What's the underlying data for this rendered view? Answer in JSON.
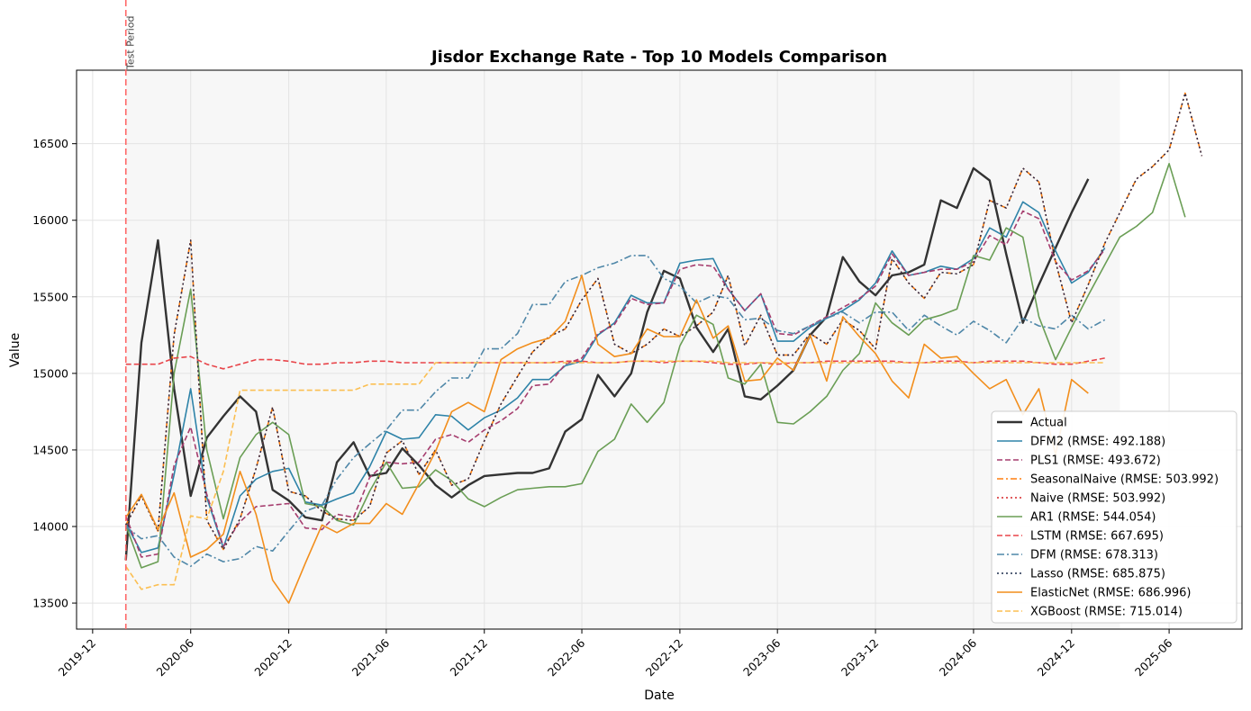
{
  "chart_data": {
    "type": "line",
    "title": "Jisdor Exchange Rate - Top 10 Models Comparison",
    "xlabel": "Date",
    "ylabel": "Value",
    "x_tick_labels": [
      "2019-12",
      "2020-06",
      "2020-12",
      "2021-06",
      "2021-12",
      "2022-06",
      "2022-12",
      "2023-06",
      "2023-12",
      "2024-06",
      "2024-12",
      "2025-06"
    ],
    "y_ticks": [
      13500,
      14000,
      14500,
      15000,
      15500,
      16000,
      16500
    ],
    "ylim": [
      13330,
      16980
    ],
    "xlim": [
      "2019-11-01",
      "2025-10-15"
    ],
    "grid": true,
    "legend_position": "lower-right",
    "test_period": {
      "label": "Test Period",
      "start": "2020-02",
      "shaded_until": "2025-03",
      "color": "#ff6666"
    },
    "months": [
      "2020-02",
      "2020-03",
      "2020-04",
      "2020-05",
      "2020-06",
      "2020-07",
      "2020-08",
      "2020-09",
      "2020-10",
      "2020-11",
      "2020-12",
      "2021-01",
      "2021-02",
      "2021-03",
      "2021-04",
      "2021-05",
      "2021-06",
      "2021-07",
      "2021-08",
      "2021-09",
      "2021-10",
      "2021-11",
      "2021-12",
      "2022-01",
      "2022-02",
      "2022-03",
      "2022-04",
      "2022-05",
      "2022-06",
      "2022-07",
      "2022-08",
      "2022-09",
      "2022-10",
      "2022-11",
      "2022-12",
      "2023-01",
      "2023-02",
      "2023-03",
      "2023-04",
      "2023-05",
      "2023-06",
      "2023-07",
      "2023-08",
      "2023-09",
      "2023-10",
      "2023-11",
      "2023-12",
      "2024-01",
      "2024-02",
      "2024-03",
      "2024-04",
      "2024-05",
      "2024-06",
      "2024-07",
      "2024-08",
      "2024-09",
      "2024-10",
      "2024-11",
      "2024-12",
      "2025-01",
      "2025-02",
      "2025-03",
      "2025-04",
      "2025-05",
      "2025-06",
      "2025-07",
      "2025-08",
      "2025-09"
    ],
    "series": [
      {
        "name": "Actual (RMSE)",
        "legend": "Actual",
        "color": "#333333",
        "width": 2.4,
        "dash": "",
        "start": 0,
        "values": [
          13780,
          15200,
          15870,
          14900,
          14200,
          14580,
          14720,
          14850,
          14750,
          14240,
          14170,
          14060,
          14040,
          14420,
          14550,
          14330,
          14350,
          14510,
          14400,
          14270,
          14190,
          14270,
          14330,
          14340,
          14350,
          14350,
          14380,
          14620,
          14700,
          14990,
          14850,
          15000,
          15400,
          15670,
          15620,
          15300,
          15140,
          15290,
          14850,
          14830,
          14920,
          15020,
          15250,
          15370,
          15760,
          15600,
          15510,
          15640,
          15660,
          15710,
          16130,
          16080,
          16340,
          16260,
          15780,
          15330,
          15580,
          15820,
          16050,
          16270
        ]
      },
      {
        "legend": "DFM2 (RMSE: 492.188)",
        "color": "#2e83a8",
        "width": 1.6,
        "dash": "",
        "start": 0,
        "values": [
          14020,
          13830,
          13860,
          14340,
          14900,
          14190,
          13860,
          14200,
          14310,
          14360,
          14380,
          14160,
          14140,
          14180,
          14220,
          14390,
          14620,
          14570,
          14580,
          14730,
          14720,
          14630,
          14710,
          14760,
          14840,
          14960,
          14960,
          15050,
          15080,
          15250,
          15330,
          15510,
          15460,
          15460,
          15720,
          15740,
          15750,
          15550,
          15410,
          15520,
          15210,
          15210,
          15300,
          15360,
          15410,
          15480,
          15590,
          15800,
          15640,
          15660,
          15700,
          15680,
          15750,
          15950,
          15890,
          16120,
          16050,
          15800,
          15590,
          15660,
          15820
        ]
      },
      {
        "legend": "PLS1 (RMSE: 493.672)",
        "color": "#a63d6e",
        "width": 1.6,
        "dash": "6,3",
        "start": 0,
        "values": [
          14070,
          13800,
          13820,
          14400,
          14650,
          14210,
          13870,
          14030,
          14130,
          14140,
          14150,
          13990,
          13980,
          14080,
          14060,
          14320,
          14420,
          14410,
          14420,
          14570,
          14600,
          14550,
          14630,
          14690,
          14770,
          14920,
          14930,
          15060,
          15100,
          15260,
          15320,
          15490,
          15450,
          15460,
          15680,
          15710,
          15700,
          15550,
          15410,
          15520,
          15260,
          15250,
          15310,
          15370,
          15430,
          15490,
          15570,
          15780,
          15640,
          15660,
          15680,
          15680,
          15730,
          15900,
          15840,
          16060,
          16010,
          15730,
          15610,
          15670,
          15810
        ]
      },
      {
        "legend": "SeasonalNaive (RMSE: 503.992)",
        "color": "#ff7f0e",
        "width": 1.6,
        "dash": "7,3,2,3",
        "start": 0,
        "values": [
          14010,
          14200,
          13970,
          15250,
          15870,
          14040,
          13850,
          14050,
          14380,
          14780,
          14230,
          14200,
          14100,
          14050,
          14040,
          14130,
          14480,
          14560,
          14340,
          14500,
          14270,
          14310,
          14560,
          14800,
          14980,
          15140,
          15240,
          15290,
          15480,
          15620,
          15190,
          15130,
          15190,
          15290,
          15240,
          15310,
          15400,
          15640,
          15180,
          15380,
          15120,
          15120,
          15260,
          15190,
          15350,
          15280,
          15160,
          15750,
          15590,
          15490,
          15660,
          15650,
          15710,
          16130,
          16080,
          16340,
          16250,
          15730,
          15330,
          15580,
          15850,
          16050,
          16270,
          16350,
          16460,
          16830,
          16420
        ]
      },
      {
        "legend": "Naive (RMSE: 503.992)",
        "color": "#d62728",
        "width": 1.4,
        "dash": "2,3",
        "start": 0,
        "values": [
          14010,
          14200,
          13970,
          15250,
          15870,
          14040,
          13850,
          14050,
          14380,
          14780,
          14230,
          14200,
          14100,
          14050,
          14040,
          14130,
          14480,
          14560,
          14340,
          14500,
          14270,
          14310,
          14560,
          14800,
          14980,
          15140,
          15240,
          15290,
          15480,
          15620,
          15190,
          15130,
          15190,
          15290,
          15240,
          15310,
          15400,
          15640,
          15180,
          15380,
          15120,
          15120,
          15260,
          15190,
          15350,
          15280,
          15160,
          15750,
          15590,
          15490,
          15660,
          15650,
          15710,
          16130,
          16080,
          16340,
          16250,
          15730,
          15330,
          15580,
          15850,
          16050,
          16270,
          16350,
          16460,
          16830,
          16420
        ]
      },
      {
        "legend": "AR1 (RMSE: 544.054)",
        "color": "#6a9e55",
        "width": 1.6,
        "dash": "",
        "start": 0,
        "values": [
          14010,
          13730,
          13770,
          15000,
          15550,
          14500,
          14050,
          14450,
          14600,
          14680,
          14600,
          14150,
          14130,
          14040,
          14010,
          14230,
          14420,
          14250,
          14260,
          14370,
          14300,
          14180,
          14130,
          14190,
          14240,
          14250,
          14260,
          14260,
          14280,
          14490,
          14570,
          14800,
          14680,
          14810,
          15180,
          15380,
          15320,
          14970,
          14930,
          15060,
          14680,
          14670,
          14750,
          14850,
          15020,
          15130,
          15460,
          15330,
          15250,
          15350,
          15380,
          15420,
          15770,
          15740,
          15950,
          15890,
          15370,
          15090,
          15300,
          15510,
          15710,
          15890,
          15960,
          16050,
          16370,
          16020
        ]
      },
      {
        "legend": "LSTM (RMSE: 667.695)",
        "color": "#e8454a",
        "width": 1.6,
        "dash": "6,3",
        "start": 0,
        "values": [
          15060,
          15060,
          15060,
          15100,
          15110,
          15060,
          15030,
          15060,
          15090,
          15090,
          15080,
          15060,
          15060,
          15070,
          15070,
          15080,
          15080,
          15070,
          15070,
          15070,
          15070,
          15070,
          15070,
          15070,
          15070,
          15070,
          15070,
          15080,
          15080,
          15070,
          15070,
          15080,
          15080,
          15070,
          15080,
          15080,
          15070,
          15060,
          15060,
          15070,
          15060,
          15070,
          15070,
          15080,
          15080,
          15080,
          15080,
          15080,
          15070,
          15070,
          15080,
          15080,
          15070,
          15080,
          15080,
          15080,
          15070,
          15060,
          15060,
          15080,
          15100
        ]
      },
      {
        "legend": "DFM (RMSE: 678.313)",
        "color": "#4f87a8",
        "width": 1.6,
        "dash": "8,3,2,3",
        "start": 0,
        "values": [
          14000,
          13920,
          13940,
          13800,
          13740,
          13820,
          13770,
          13790,
          13870,
          13840,
          13970,
          14100,
          14140,
          14310,
          14450,
          14540,
          14630,
          14760,
          14760,
          14880,
          14970,
          14970,
          15160,
          15160,
          15260,
          15450,
          15450,
          15600,
          15640,
          15690,
          15720,
          15770,
          15770,
          15620,
          15570,
          15460,
          15510,
          15490,
          15350,
          15360,
          15280,
          15260,
          15310,
          15360,
          15400,
          15330,
          15400,
          15400,
          15280,
          15380,
          15310,
          15250,
          15340,
          15280,
          15200,
          15360,
          15310,
          15290,
          15380,
          15290,
          15350
        ]
      },
      {
        "legend": "Lasso (RMSE: 685.875)",
        "color": "#1f2f4f",
        "width": 1.4,
        "dash": "2,3",
        "start": 0,
        "values": [
          14010,
          14200,
          13970,
          15250,
          15870,
          14040,
          13850,
          14050,
          14380,
          14780,
          14230,
          14200,
          14100,
          14050,
          14040,
          14130,
          14480,
          14560,
          14340,
          14500,
          14270,
          14310,
          14560,
          14800,
          14980,
          15140,
          15240,
          15290,
          15480,
          15620,
          15190,
          15130,
          15190,
          15290,
          15240,
          15310,
          15400,
          15640,
          15180,
          15380,
          15120,
          15120,
          15260,
          15190,
          15350,
          15280,
          15160,
          15750,
          15590,
          15490,
          15660,
          15650,
          15710,
          16130,
          16080,
          16340,
          16250,
          15730,
          15330,
          15580,
          15850,
          16050,
          16270,
          16350,
          16460,
          16830,
          16420
        ]
      },
      {
        "legend": "ElasticNet (RMSE: 686.996)",
        "color": "#f28e1c",
        "width": 1.6,
        "dash": "",
        "start": 0,
        "values": [
          14060,
          14210,
          13980,
          14220,
          13800,
          13850,
          13950,
          14360,
          14080,
          13650,
          13500,
          13760,
          14010,
          13960,
          14020,
          14020,
          14150,
          14080,
          14280,
          14490,
          14750,
          14810,
          14750,
          15090,
          15160,
          15200,
          15230,
          15340,
          15640,
          15190,
          15110,
          15130,
          15290,
          15240,
          15240,
          15480,
          15230,
          15310,
          14950,
          14960,
          15100,
          15020,
          15250,
          14950,
          15370,
          15240,
          15130,
          14950,
          14840,
          15190,
          15100,
          15110,
          15000,
          14900,
          14960,
          14730,
          14900,
          14470,
          14960,
          14870
        ]
      },
      {
        "legend": "XGBoost (RMSE: 715.014)",
        "color": "#fbbf52",
        "width": 1.6,
        "dash": "6,3",
        "start": 0,
        "values": [
          13740,
          13590,
          13620,
          13620,
          14070,
          14050,
          14360,
          14890,
          14890,
          14890,
          14890,
          14890,
          14890,
          14890,
          14890,
          14930,
          14930,
          14930,
          14930,
          15070,
          15070,
          15070,
          15070,
          15070,
          15070,
          15070,
          15070,
          15070,
          15070,
          15070,
          15070,
          15080,
          15080,
          15080,
          15080,
          15080,
          15080,
          15070,
          15070,
          15070,
          15070,
          15070,
          15070,
          15070,
          15070,
          15070,
          15070,
          15070,
          15070,
          15070,
          15070,
          15070,
          15070,
          15070,
          15070,
          15070,
          15070,
          15070,
          15070,
          15070,
          15070
        ]
      }
    ]
  }
}
